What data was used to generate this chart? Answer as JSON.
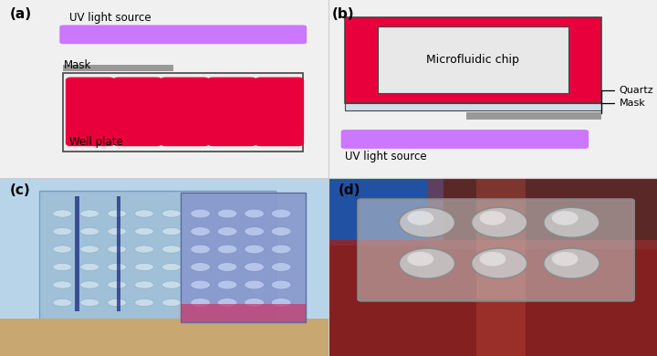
{
  "bg_color": "#f0f0f0",
  "uv_color": "#cc77ff",
  "mask_color": "#999999",
  "well_color": "#e8003d",
  "chip_fill": "#e8003d",
  "quartz_color": "#d0dde8",
  "border_color": "#444444",
  "label_color": "#000000",
  "panel_a_label": "(a)",
  "panel_b_label": "(b)",
  "panel_c_label": "(c)",
  "panel_d_label": "(d)",
  "uv_label_a": "UV light source",
  "mask_label_a": "Mask",
  "well_label_a": "Well plate",
  "chip_label_b": "Microfluidic chip",
  "quartz_label_b": "Quartz",
  "mask_label_b": "Mask",
  "uv_label_b": "UV light source"
}
